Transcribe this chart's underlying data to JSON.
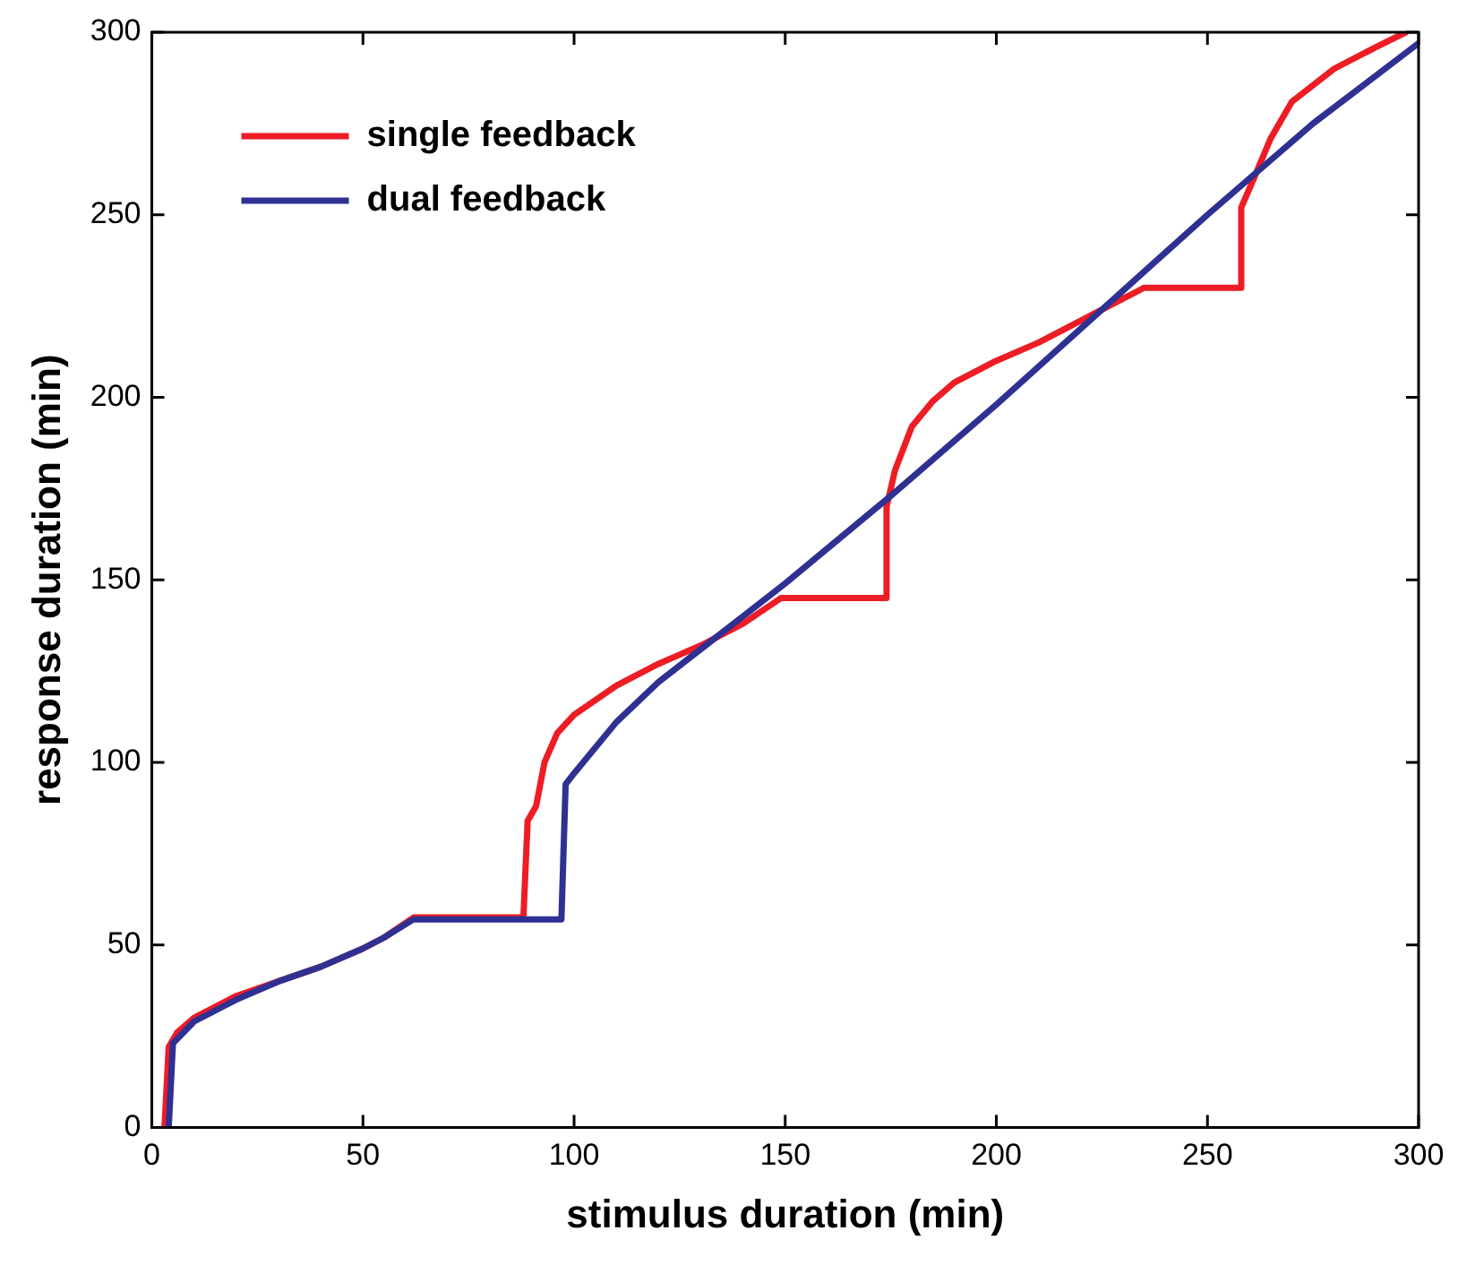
{
  "chart_data": {
    "type": "line",
    "xlabel": "stimulus duration (min)",
    "ylabel": "response duration (min)",
    "xlim": [
      0,
      300
    ],
    "ylim": [
      0,
      300
    ],
    "xticks": [
      0,
      50,
      100,
      150,
      200,
      250,
      300
    ],
    "yticks": [
      0,
      50,
      100,
      150,
      200,
      250,
      300
    ],
    "grid": false,
    "legend": "top left",
    "marker": "none",
    "line_style": "solid",
    "series": [
      {
        "name": "single feedback",
        "color": "#ee1c25",
        "x": [
          3,
          4,
          6,
          10,
          20,
          30,
          40,
          50,
          55,
          62,
          88,
          89,
          91,
          93,
          96,
          100,
          110,
          120,
          130,
          140,
          149,
          174,
          174,
          176,
          180,
          185,
          190,
          200,
          210,
          220,
          230,
          235,
          258,
          258,
          261,
          265,
          270,
          280,
          290,
          297
        ],
        "values": [
          0,
          22,
          26,
          30,
          36,
          40,
          44,
          49,
          52,
          57.5,
          57.5,
          84,
          88,
          100,
          108,
          113,
          121,
          127,
          132,
          138,
          145,
          145,
          170,
          180,
          192,
          199,
          204,
          210,
          215,
          221,
          227,
          230,
          230,
          252,
          260,
          271,
          281,
          290,
          296,
          300
        ]
      },
      {
        "name": "dual feedback",
        "color": "#2e3192",
        "x": [
          4,
          5,
          10,
          20,
          30,
          40,
          50,
          55,
          62,
          97,
          98,
          100,
          110,
          120,
          130,
          140,
          150,
          175,
          200,
          225,
          250,
          275,
          300
        ],
        "values": [
          0,
          23,
          29,
          35,
          40,
          44,
          49,
          52,
          57,
          57,
          94,
          97,
          111,
          122,
          131,
          140,
          149,
          173,
          198,
          224,
          250,
          275,
          297
        ]
      }
    ]
  }
}
